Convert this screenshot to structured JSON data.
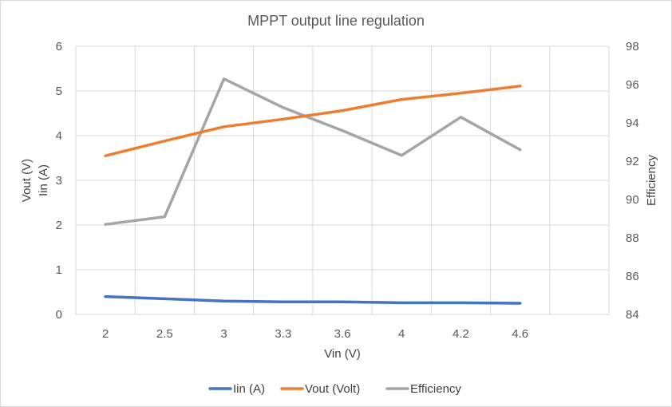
{
  "chart_data": {
    "type": "line",
    "title": "MPPT output line regulation",
    "xlabel": "Vin (V)",
    "ylabel_left": [
      "Vout (V)",
      "Iin (A)"
    ],
    "ylabel_right": "Efficiency",
    "categories": [
      "2",
      "2.5",
      "3",
      "3.3",
      "3.6",
      "4",
      "4.2",
      "4.6"
    ],
    "ylim_left": [
      0,
      6
    ],
    "yticks_left": [
      0,
      1,
      2,
      3,
      4,
      5,
      6
    ],
    "ylim_right": [
      84,
      98
    ],
    "yticks_right": [
      84,
      86,
      88,
      90,
      92,
      94,
      96,
      98
    ],
    "grid": true,
    "legend_position": "bottom",
    "series": [
      {
        "name": "Iin (A)",
        "axis": "left",
        "color": "#4472C4",
        "values": [
          0.4,
          0.35,
          0.3,
          0.28,
          0.28,
          0.26,
          0.26,
          0.25
        ]
      },
      {
        "name": "Vout (Volt)",
        "axis": "left",
        "color": "#ED7D31",
        "values": [
          3.55,
          3.88,
          4.2,
          4.37,
          4.56,
          4.81,
          4.95,
          5.11
        ]
      },
      {
        "name": "Efficiency",
        "axis": "right",
        "color": "#A5A5A5",
        "values": [
          88.7,
          89.1,
          96.3,
          94.8,
          93.6,
          92.3,
          94.3,
          92.6
        ]
      }
    ]
  }
}
